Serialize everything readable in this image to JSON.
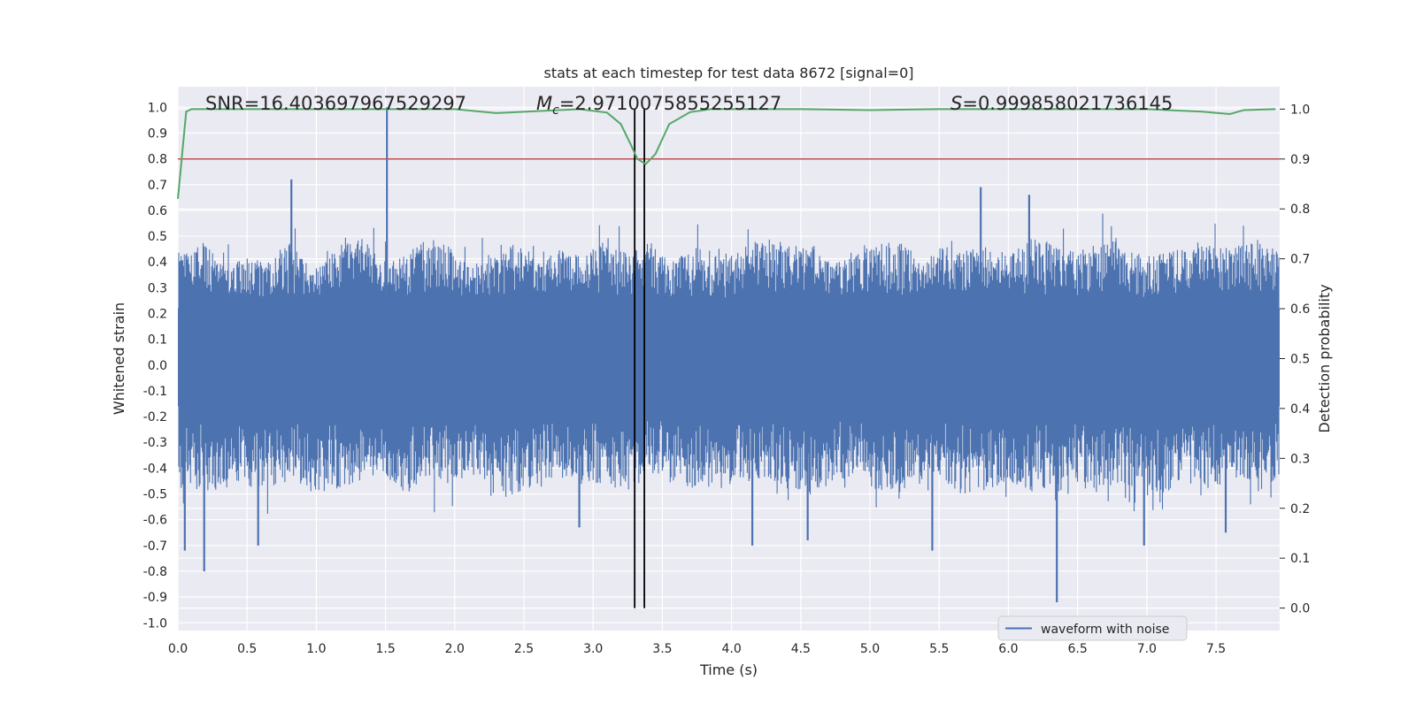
{
  "chart_data": {
    "type": "line",
    "title": "stats at each timestep for test data 8672 [signal=0]",
    "xlabel": "Time (s)",
    "ylabel": "Whitened strain",
    "y2label": "Detection probability",
    "xlim": [
      0.0,
      7.96
    ],
    "ylim": [
      -1.03,
      1.08
    ],
    "y2lim": [
      -0.045,
      1.045
    ],
    "xticks": [
      "0.0",
      "0.5",
      "1.0",
      "1.5",
      "2.0",
      "2.5",
      "3.0",
      "3.5",
      "4.0",
      "4.5",
      "5.0",
      "5.5",
      "6.0",
      "6.5",
      "7.0",
      "7.5"
    ],
    "yticks": [
      "1.0",
      "0.9",
      "0.8",
      "0.7",
      "0.6",
      "0.5",
      "0.4",
      "0.3",
      "0.2",
      "0.1",
      "0.0",
      "-0.1",
      "-0.2",
      "-0.3",
      "-0.4",
      "-0.5",
      "-0.6",
      "-0.7",
      "-0.8",
      "-0.9",
      "-1.0"
    ],
    "y2ticks": [
      "1.0",
      "0.9",
      "0.8",
      "0.7",
      "0.6",
      "0.5",
      "0.4",
      "0.3",
      "0.2",
      "0.1",
      "0.0"
    ],
    "annotations": {
      "snr": "SNR=16.403697967529297",
      "mc_symbol": "M",
      "mc_sub": "c",
      "mc_value": "=2.9710075855255127",
      "s_symbol": "S",
      "s_value": "=0.999858021736145"
    },
    "legend": {
      "label": "waveform with noise",
      "location": "lower-right"
    },
    "threshold": {
      "value": 0.9,
      "color": "#c44e52"
    },
    "vertical_lines": [
      3.3,
      3.37
    ],
    "waveform": {
      "name": "waveform with noise",
      "color": "#4c72b0",
      "core_band": [
        -0.16,
        0.22
      ],
      "envelope_high": [
        0.44,
        0.5,
        0.38,
        0.42,
        0.4,
        0.48,
        0.36,
        0.45,
        0.52,
        0.4,
        0.42,
        0.5,
        0.46,
        0.38,
        0.44,
        0.48,
        0.4,
        0.46,
        0.42,
        0.5,
        0.44,
        0.48,
        0.4,
        0.46,
        0.42,
        0.44,
        0.5,
        0.46,
        0.48,
        0.4,
        0.44,
        0.46,
        0.5,
        0.42,
        0.46,
        0.44,
        0.48,
        0.42,
        0.52,
        0.46,
        0.44,
        0.48,
        0.5,
        0.42,
        0.46,
        0.44,
        0.48,
        0.46,
        0.5,
        0.44
      ],
      "envelope_low": [
        -0.55,
        -0.5,
        -0.48,
        -0.46,
        -0.52,
        -0.44,
        -0.5,
        -0.48,
        -0.46,
        -0.42,
        -0.5,
        -0.48,
        -0.46,
        -0.44,
        -0.5,
        -0.52,
        -0.46,
        -0.44,
        -0.48,
        -0.46,
        -0.5,
        -0.42,
        -0.46,
        -0.48,
        -0.5,
        -0.46,
        -0.44,
        -0.48,
        -0.52,
        -0.46,
        -0.44,
        -0.48,
        -0.5,
        -0.46,
        -0.44,
        -0.52,
        -0.48,
        -0.46,
        -0.5,
        -0.46,
        -0.48,
        -0.5,
        -0.46,
        -0.48,
        -0.5,
        -0.46,
        -0.48,
        -0.44,
        -0.5,
        -0.46
      ],
      "spikes": [
        {
          "x": 1.51,
          "y": 1.0
        },
        {
          "x": 0.82,
          "y": 0.72
        },
        {
          "x": 5.8,
          "y": 0.69
        },
        {
          "x": 6.15,
          "y": 0.66
        },
        {
          "x": 0.19,
          "y": -0.8
        },
        {
          "x": 6.35,
          "y": -0.92
        },
        {
          "x": 4.15,
          "y": -0.7
        },
        {
          "x": 5.45,
          "y": -0.72
        },
        {
          "x": 0.58,
          "y": -0.7
        },
        {
          "x": 6.98,
          "y": -0.7
        },
        {
          "x": 4.55,
          "y": -0.68
        },
        {
          "x": 2.9,
          "y": -0.63
        },
        {
          "x": 7.57,
          "y": -0.65
        },
        {
          "x": 0.05,
          "y": -0.72
        }
      ]
    },
    "probability": {
      "name": "detection probability",
      "color": "#55a868",
      "x": [
        0.0,
        0.06,
        0.1,
        0.2,
        0.5,
        1.0,
        1.5,
        2.0,
        2.3,
        2.6,
        2.9,
        3.1,
        3.2,
        3.27,
        3.32,
        3.38,
        3.45,
        3.55,
        3.7,
        3.85,
        4.0,
        4.5,
        5.0,
        5.5,
        6.0,
        6.5,
        7.0,
        7.4,
        7.6,
        7.7,
        7.93
      ],
      "y": [
        0.82,
        0.995,
        1.0,
        1.0,
        1.0,
        1.0,
        1.0,
        1.0,
        0.992,
        0.996,
        1.0,
        0.993,
        0.97,
        0.93,
        0.9,
        0.89,
        0.91,
        0.97,
        0.994,
        1.0,
        1.0,
        1.0,
        0.998,
        1.0,
        1.0,
        1.0,
        1.0,
        0.995,
        0.99,
        0.998,
        1.0
      ]
    }
  }
}
